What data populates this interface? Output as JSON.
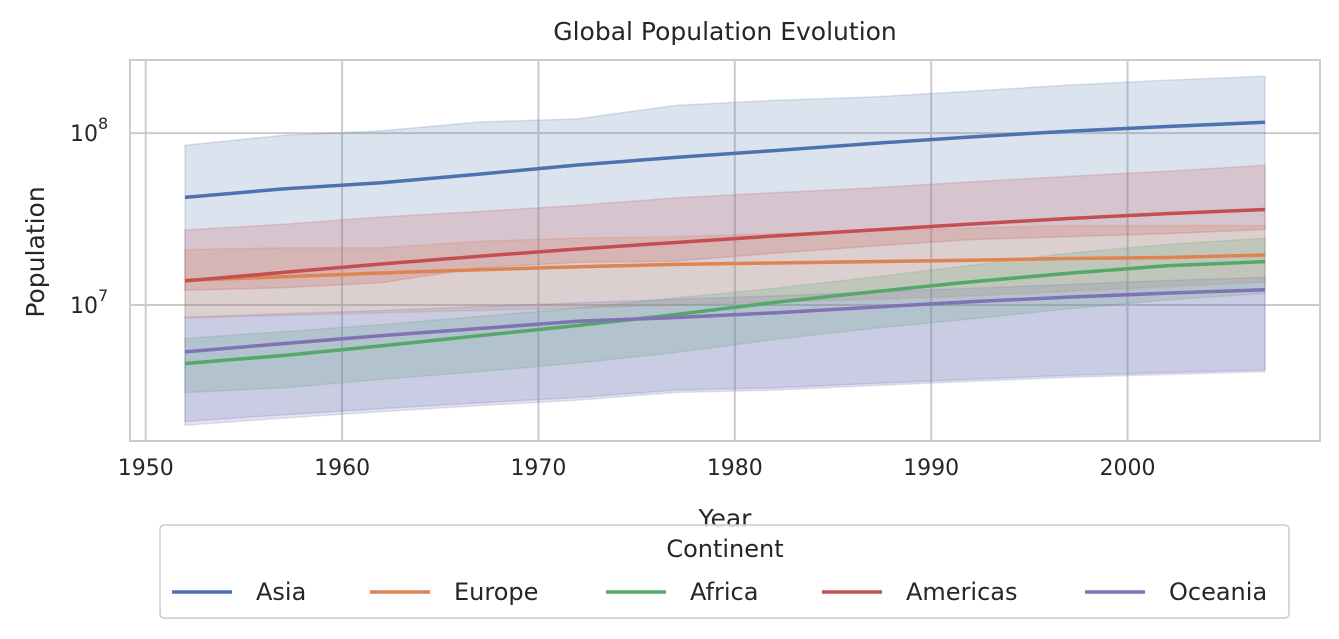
{
  "chart_data": {
    "type": "line",
    "title": "Global Population Evolution",
    "xlabel": "Year",
    "ylabel": "Population",
    "yscale": "log",
    "xlim": [
      1949.2,
      2009.8
    ],
    "ylim": [
      1620000,
      266000000
    ],
    "grid": true,
    "x_ticks": [
      "1950",
      "1960",
      "1970",
      "1980",
      "1990",
      "2000"
    ],
    "y_ticks": [
      {
        "base": "10",
        "exp": "7",
        "value": 10000000
      },
      {
        "base": "10",
        "exp": "8",
        "value": 100000000
      }
    ],
    "legend": {
      "title": "Continent",
      "placement": "bottom-outside"
    },
    "x": [
      1952,
      1957,
      1962,
      1967,
      1972,
      1977,
      1982,
      1987,
      1992,
      1997,
      2002,
      2007
    ],
    "series": [
      {
        "name": "Asia",
        "color": "#4c72b0",
        "values": [
          42.28,
          47.36,
          51.4,
          57.75,
          65.18,
          72.26,
          79.1,
          87.01,
          94.95,
          102.52,
          109.15,
          115.51
        ],
        "ci_lower": [
          2.1,
          2.3,
          2.5,
          2.7,
          2.9,
          3.2,
          3.3,
          3.5,
          3.7,
          3.9,
          4.05,
          4.2
        ],
        "ci_upper": [
          85,
          97,
          103,
          116,
          121,
          145,
          155,
          162,
          175,
          190,
          203,
          214
        ]
      },
      {
        "name": "Europe",
        "color": "#dd8452",
        "values": [
          13.94,
          14.6,
          15.35,
          16.04,
          16.69,
          17.24,
          17.57,
          17.9,
          18.23,
          18.66,
          18.89,
          19.54
        ],
        "ci_lower": [
          8.4,
          8.7,
          9.0,
          9.3,
          9.6,
          10.0,
          10.4,
          10.8,
          11.3,
          12.0,
          12.8,
          13.6
        ],
        "ci_upper": [
          21,
          21.5,
          21.5,
          23.5,
          24.5,
          25,
          26,
          27,
          28,
          29,
          29,
          29
        ]
      },
      {
        "name": "Africa",
        "color": "#55a868",
        "values": [
          4.57,
          5.09,
          5.79,
          6.64,
          7.6,
          8.81,
          10.35,
          11.93,
          13.63,
          15.31,
          16.93,
          17.88
        ],
        "ci_lower": [
          3.1,
          3.3,
          3.7,
          4.1,
          4.6,
          5.3,
          6.3,
          7.3,
          8.3,
          9.5,
          10.7,
          11.7
        ],
        "ci_upper": [
          6.4,
          7.0,
          7.7,
          8.6,
          9.6,
          11,
          12.5,
          14.5,
          17,
          20,
          22.5,
          24.5
        ]
      },
      {
        "name": "Americas",
        "color": "#c44e52",
        "values": [
          13.81,
          15.48,
          17.33,
          19.23,
          21.18,
          23.12,
          25.21,
          27.31,
          29.57,
          31.88,
          33.99,
          35.95
        ],
        "ci_lower": [
          12.2,
          12.6,
          13.5,
          16.5,
          17.7,
          18,
          20,
          22,
          24,
          25,
          26,
          27.5
        ],
        "ci_upper": [
          27.3,
          29.5,
          32.5,
          35,
          38,
          42,
          45,
          48,
          52,
          56,
          60,
          65
        ]
      },
      {
        "name": "Oceania",
        "color": "#8172b3",
        "values": [
          5.34,
          5.97,
          6.64,
          7.3,
          8.05,
          8.46,
          9.01,
          9.71,
          10.46,
          11.12,
          11.73,
          12.27
        ],
        "ci_lower": [
          2.0,
          2.2,
          2.4,
          2.6,
          2.8,
          3.1,
          3.2,
          3.4,
          3.6,
          3.8,
          3.95,
          4.1
        ],
        "ci_upper": [
          8.5,
          8.9,
          9.3,
          9.8,
          10.3,
          10.8,
          11.3,
          11.9,
          12.5,
          13.2,
          13.9,
          14.5
        ]
      }
    ],
    "value_unit_multiplier": 1000000
  }
}
